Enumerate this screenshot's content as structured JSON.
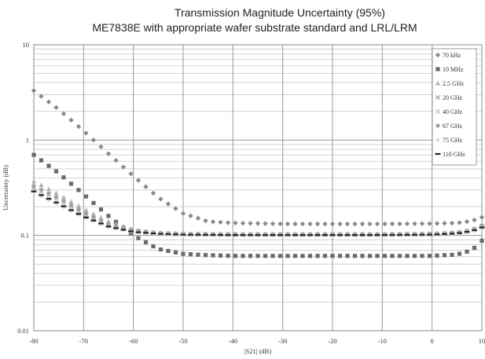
{
  "chart_data": {
    "type": "scatter",
    "title": "Transmission Magnitude Uncertainty (95%)",
    "subtitle": "ME7838E with appropriate wafer substrate standard and LRL/LRM",
    "xlabel": "|S21| (dB)",
    "ylabel": "Uncertainty (dB)",
    "xlim": [
      -80,
      10
    ],
    "ylim": [
      0.01,
      10
    ],
    "yscale": "log",
    "grid": true,
    "legend_position": "top-right",
    "x_ticks": [
      "-80",
      "-70",
      "-60",
      "-50",
      "-40",
      "-30",
      "-20",
      "-10",
      "0",
      "10"
    ],
    "y_ticks": [
      "10",
      "1",
      "0.1",
      "0.01"
    ],
    "series": [
      {
        "name": "70 kHz",
        "marker": "diamond",
        "color": "#8a8a8a",
        "points": [
          [
            -80,
            3.3
          ],
          [
            -75,
            2.1
          ],
          [
            -70,
            1.25
          ],
          [
            -65,
            0.72
          ],
          [
            -60,
            0.42
          ],
          [
            -55,
            0.25
          ],
          [
            -50,
            0.17
          ],
          [
            -45,
            0.14
          ],
          [
            -40,
            0.135
          ],
          [
            -30,
            0.132
          ],
          [
            -20,
            0.132
          ],
          [
            -10,
            0.132
          ],
          [
            0,
            0.133
          ],
          [
            5,
            0.135
          ],
          [
            8,
            0.142
          ],
          [
            10,
            0.155
          ]
        ]
      },
      {
        "name": "10 MHz",
        "marker": "square",
        "color": "#6a6a6a",
        "points": [
          [
            -80,
            0.7
          ],
          [
            -75,
            0.45
          ],
          [
            -70,
            0.27
          ],
          [
            -65,
            0.16
          ],
          [
            -60,
            0.1
          ],
          [
            -55,
            0.072
          ],
          [
            -50,
            0.064
          ],
          [
            -45,
            0.062
          ],
          [
            -40,
            0.061
          ],
          [
            -30,
            0.061
          ],
          [
            -20,
            0.061
          ],
          [
            -10,
            0.061
          ],
          [
            0,
            0.061
          ],
          [
            5,
            0.063
          ],
          [
            8,
            0.07
          ],
          [
            10,
            0.088
          ]
        ]
      },
      {
        "name": "2.5 GHz",
        "marker": "triangle",
        "color": "#b0b0b0",
        "points": [
          [
            -80,
            0.37
          ],
          [
            -75,
            0.27
          ],
          [
            -70,
            0.19
          ],
          [
            -65,
            0.14
          ],
          [
            -60,
            0.115
          ],
          [
            -55,
            0.106
          ],
          [
            -50,
            0.104
          ],
          [
            -40,
            0.103
          ],
          [
            -30,
            0.103
          ],
          [
            -20,
            0.103
          ],
          [
            -10,
            0.103
          ],
          [
            0,
            0.104
          ],
          [
            5,
            0.107
          ],
          [
            8,
            0.115
          ],
          [
            10,
            0.13
          ]
        ]
      },
      {
        "name": "20 GHz",
        "marker": "x",
        "color": "#9a9a9a",
        "points": [
          [
            -80,
            0.32
          ],
          [
            -75,
            0.24
          ],
          [
            -70,
            0.17
          ],
          [
            -65,
            0.13
          ],
          [
            -60,
            0.112
          ],
          [
            -55,
            0.105
          ],
          [
            -50,
            0.103
          ],
          [
            -40,
            0.102
          ],
          [
            -30,
            0.102
          ],
          [
            -20,
            0.102
          ],
          [
            -10,
            0.102
          ],
          [
            0,
            0.103
          ],
          [
            5,
            0.106
          ],
          [
            8,
            0.113
          ],
          [
            10,
            0.125
          ]
        ]
      },
      {
        "name": "40 GHz",
        "marker": "x",
        "color": "#c0c0c0",
        "points": [
          [
            -80,
            0.3
          ],
          [
            -75,
            0.22
          ],
          [
            -70,
            0.16
          ],
          [
            -65,
            0.125
          ],
          [
            -60,
            0.11
          ],
          [
            -55,
            0.104
          ],
          [
            -50,
            0.102
          ],
          [
            -40,
            0.101
          ],
          [
            -30,
            0.101
          ],
          [
            -20,
            0.101
          ],
          [
            -10,
            0.101
          ],
          [
            0,
            0.102
          ],
          [
            5,
            0.105
          ],
          [
            8,
            0.112
          ],
          [
            10,
            0.122
          ]
        ]
      },
      {
        "name": "67 GHz",
        "marker": "circle",
        "color": "#a0a0a0",
        "points": [
          [
            -80,
            0.33
          ],
          [
            -75,
            0.245
          ],
          [
            -70,
            0.175
          ],
          [
            -65,
            0.132
          ],
          [
            -60,
            0.113
          ],
          [
            -55,
            0.106
          ],
          [
            -50,
            0.104
          ],
          [
            -40,
            0.103
          ],
          [
            -30,
            0.103
          ],
          [
            -20,
            0.103
          ],
          [
            -10,
            0.103
          ],
          [
            0,
            0.104
          ],
          [
            5,
            0.107
          ],
          [
            8,
            0.114
          ],
          [
            10,
            0.127
          ]
        ]
      },
      {
        "name": "75 GHz",
        "marker": "plus",
        "color": "#c8c8c8",
        "points": [
          [
            -80,
            0.28
          ],
          [
            -75,
            0.21
          ],
          [
            -70,
            0.155
          ],
          [
            -65,
            0.122
          ],
          [
            -60,
            0.108
          ],
          [
            -55,
            0.103
          ],
          [
            -50,
            0.101
          ],
          [
            -40,
            0.1
          ],
          [
            -30,
            0.1
          ],
          [
            -20,
            0.1
          ],
          [
            -10,
            0.1
          ],
          [
            0,
            0.101
          ],
          [
            5,
            0.104
          ],
          [
            8,
            0.11
          ],
          [
            10,
            0.12
          ]
        ]
      },
      {
        "name": "110 GHz",
        "marker": "dash",
        "color": "#222222",
        "points": [
          [
            -80,
            0.29
          ],
          [
            -75,
            0.215
          ],
          [
            -70,
            0.158
          ],
          [
            -65,
            0.124
          ],
          [
            -60,
            0.109
          ],
          [
            -55,
            0.104
          ],
          [
            -50,
            0.102
          ],
          [
            -40,
            0.101
          ],
          [
            -30,
            0.101
          ],
          [
            -20,
            0.101
          ],
          [
            -10,
            0.101
          ],
          [
            0,
            0.102
          ],
          [
            5,
            0.105
          ],
          [
            8,
            0.111
          ],
          [
            10,
            0.121
          ]
        ]
      }
    ]
  }
}
